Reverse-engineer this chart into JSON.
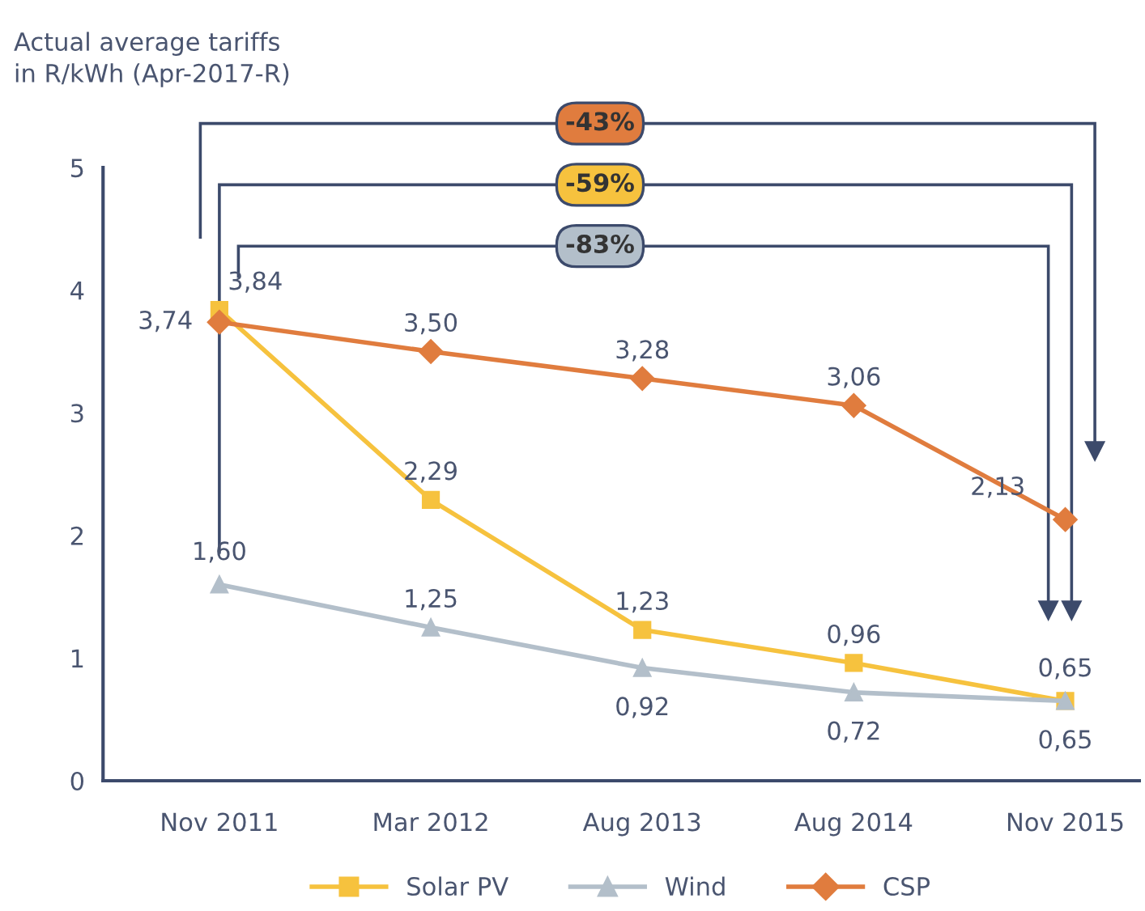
{
  "chart_data": {
    "type": "line",
    "ylabel": "Actual average tariffs in R/kWh (Apr-2017-R)",
    "categories": [
      "Nov 2011",
      "Mar 2012",
      "Aug 2013",
      "Aug 2014",
      "Nov 2015"
    ],
    "series": [
      {
        "name": "Solar PV",
        "color": "#f6c23e",
        "marker": "square",
        "values": [
          3.84,
          2.29,
          1.23,
          0.96,
          0.65
        ],
        "value_labels": [
          "3,84",
          "2,29",
          "1,23",
          "0,96",
          "0,65"
        ]
      },
      {
        "name": "Wind",
        "color": "#b3bfca",
        "marker": "triangle",
        "values": [
          1.6,
          1.25,
          0.92,
          0.72,
          0.65
        ],
        "value_labels": [
          "1,60",
          "1,25",
          "0,92",
          "0,72",
          "0,65"
        ]
      },
      {
        "name": "CSP",
        "color": "#e07c3e",
        "marker": "diamond",
        "values": [
          3.74,
          3.5,
          3.28,
          3.06,
          2.13
        ],
        "value_labels": [
          "3,74",
          "3,50",
          "3,28",
          "3,06",
          "2,13"
        ]
      }
    ],
    "ylim": [
      0,
      5
    ],
    "yticks": [
      0,
      1,
      2,
      3,
      4,
      5
    ],
    "grid": false,
    "legend": "bottom",
    "annotations": [
      "-43%",
      "-59%",
      "-83%"
    ]
  }
}
